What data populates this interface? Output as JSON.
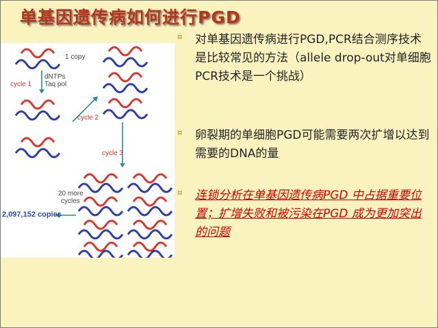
{
  "slide": {
    "title": "单基因遗传病如何进行PGD",
    "bullets": [
      {
        "text": "对单基因遗传病进行PGD,PCR结合测序技术是比较常见的方法（allele drop-out对单细胞PCR技术是一个挑战）",
        "emphasis": false
      },
      {
        "text": "卵裂期的单细胞PGD可能需要两次扩增以达到需要的DNA的量",
        "emphasis": false
      },
      {
        "text": "连锁分析在单基因遗传病PGD 中占据重要位置；扩增失败和被污染在PGD 成为更加突出的问题",
        "emphasis": true
      }
    ],
    "bullet_icon": "square-bullet-icon",
    "colors": {
      "background": "#fbf3bf",
      "title": "#b5361f",
      "bullet_marker": "#c88a1a",
      "emphasis_text": "#d40000",
      "strand_red": "#d63a2f",
      "strand_blue": "#2f3fa8",
      "arrow": "#2e8b86"
    }
  },
  "figure": {
    "labels": {
      "copy": "1 copy",
      "reagents_line1": "dNTPs",
      "reagents_line2": "Taq pol",
      "cycle1": "cycle 1",
      "cycle2": "cycle 2",
      "cycle3": "cycle 3",
      "more_line1": "20 more",
      "more_line2": "cycles",
      "copies": "2,097,152 copies"
    }
  }
}
